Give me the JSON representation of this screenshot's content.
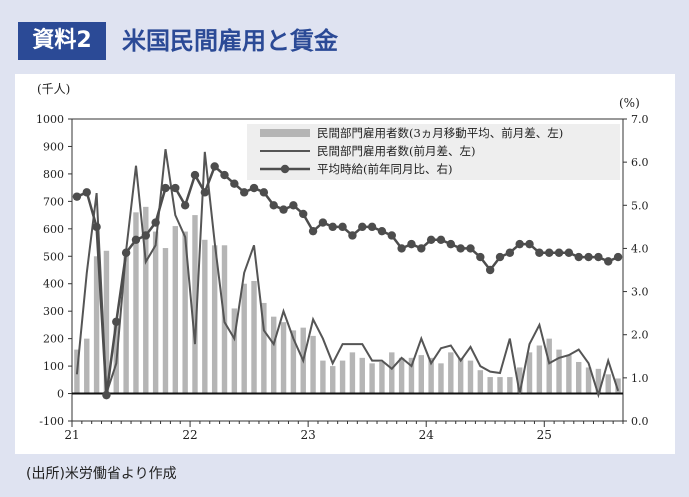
{
  "header": {
    "badge": "資料2",
    "title": "米国民間雇用と賃金"
  },
  "source": "(出所)米労働省より作成",
  "colors": {
    "accent": "#2b4a96",
    "bars": "#b5b5b5",
    "line": "#555555",
    "wage": "#4d4d4d"
  },
  "chart_data": {
    "type": "bar",
    "x_ticks": [
      "21",
      "22",
      "23",
      "24",
      "25"
    ],
    "left_axis": {
      "unit": "(千人)",
      "ylim": [
        -100,
        1000
      ],
      "ticks": [
        "1000",
        "900",
        "800",
        "700",
        "600",
        "500",
        "400",
        "300",
        "200",
        "100",
        "0",
        "-100"
      ]
    },
    "right_axis": {
      "unit": "(%)",
      "ylim": [
        0.0,
        7.0
      ],
      "ticks": [
        "7.0",
        "6.0",
        "5.0",
        "4.0",
        "3.0",
        "2.0",
        "1.0",
        "0.0"
      ]
    },
    "legend": [
      {
        "name": "民間部門雇用者数(3ヵ月移動平均、前月差、左)",
        "kind": "bar"
      },
      {
        "name": "民間部門雇用者数(前月差、左)",
        "kind": "line"
      },
      {
        "name": "平均時給(前年同月比、右)",
        "kind": "marker-line"
      }
    ],
    "months": [
      "2021-01",
      "2021-02",
      "2021-03",
      "2021-04",
      "2021-05",
      "2021-06",
      "2021-07",
      "2021-08",
      "2021-09",
      "2021-10",
      "2021-11",
      "2021-12",
      "2022-01",
      "2022-02",
      "2022-03",
      "2022-04",
      "2022-05",
      "2022-06",
      "2022-07",
      "2022-08",
      "2022-09",
      "2022-10",
      "2022-11",
      "2022-12",
      "2023-01",
      "2023-02",
      "2023-03",
      "2023-04",
      "2023-05",
      "2023-06",
      "2023-07",
      "2023-08",
      "2023-09",
      "2023-10",
      "2023-11",
      "2023-12",
      "2024-01",
      "2024-02",
      "2024-03",
      "2024-04",
      "2024-05",
      "2024-06",
      "2024-07",
      "2024-08",
      "2024-09",
      "2024-10",
      "2024-11",
      "2024-12",
      "2025-01",
      "2025-02",
      "2025-03",
      "2025-04",
      "2025-05",
      "2025-06",
      "2025-07",
      "2025-08"
    ],
    "series": [
      {
        "name": "民間部門雇用者数(3ヵ月移動平均、前月差、左)",
        "axis": "left",
        "values": [
          160,
          200,
          500,
          520,
          270,
          500,
          660,
          680,
          590,
          530,
          610,
          590,
          650,
          560,
          540,
          540,
          310,
          400,
          410,
          330,
          280,
          260,
          230,
          240,
          210,
          120,
          100,
          120,
          150,
          130,
          110,
          115,
          150,
          130,
          130,
          140,
          130,
          110,
          150,
          130,
          120,
          85,
          60,
          60,
          60,
          95,
          150,
          175,
          200,
          160,
          140,
          115,
          95,
          90,
          70,
          55
        ]
      },
      {
        "name": "民間部門雇用者数(前月差、左)",
        "axis": "left",
        "values": [
          70,
          440,
          730,
          0,
          110,
          520,
          830,
          480,
          540,
          890,
          650,
          570,
          180,
          880,
          550,
          260,
          200,
          440,
          540,
          230,
          180,
          300,
          200,
          120,
          270,
          200,
          110,
          180,
          180,
          180,
          120,
          120,
          90,
          130,
          100,
          200,
          110,
          165,
          175,
          120,
          170,
          100,
          80,
          75,
          200,
          0,
          180,
          250,
          110,
          130,
          140,
          160,
          110,
          -5,
          120,
          10
        ]
      },
      {
        "name": "平均時給(前年同月比、右)",
        "axis": "right",
        "values": [
          5.2,
          5.3,
          4.5,
          0.6,
          2.3,
          3.9,
          4.2,
          4.3,
          4.6,
          5.4,
          5.4,
          5.0,
          5.7,
          5.3,
          5.9,
          5.7,
          5.5,
          5.3,
          5.4,
          5.3,
          5.0,
          4.9,
          5.0,
          4.8,
          4.4,
          4.6,
          4.5,
          4.5,
          4.3,
          4.5,
          4.5,
          4.4,
          4.3,
          4.0,
          4.1,
          4.0,
          4.2,
          4.2,
          4.1,
          4.0,
          4.0,
          3.8,
          3.5,
          3.8,
          3.9,
          4.1,
          4.1,
          3.9,
          3.9,
          3.9,
          3.9,
          3.8,
          3.8,
          3.8,
          3.7,
          3.8
        ]
      }
    ]
  }
}
